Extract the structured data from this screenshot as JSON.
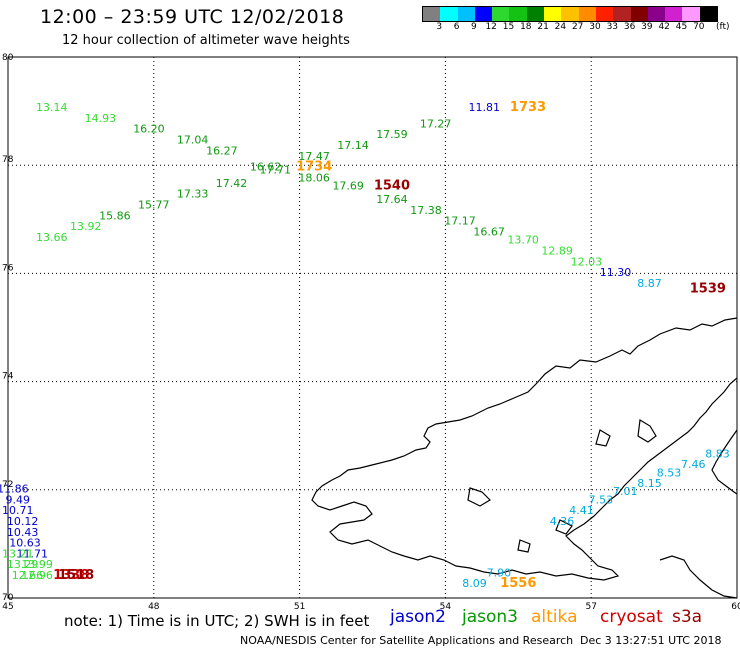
{
  "header": {
    "title": "12:00 – 23:59 UTC 12/02/2018",
    "subtitle": "12 hour collection of altimeter wave heights"
  },
  "colorbar": {
    "colors": [
      "#808080",
      "#00ffff",
      "#00bfff",
      "#0000ff",
      "#2fd82f",
      "#13c213",
      "#008000",
      "#ffff00",
      "#ffc000",
      "#ff8c00",
      "#ff2000",
      "#b22222",
      "#800000",
      "#8b008b",
      "#d020d0",
      "#ff99ff",
      "#000000"
    ],
    "ticks": [
      "3",
      "6",
      "9",
      "12",
      "15",
      "18",
      "21",
      "24",
      "27",
      "30",
      "33",
      "36",
      "39",
      "42",
      "45",
      "70"
    ],
    "unit": "(ft)"
  },
  "map": {
    "lon_range": [
      45,
      60
    ],
    "lat_range": [
      70,
      80
    ],
    "lon_ticks": [
      "45",
      "48",
      "51",
      "54",
      "57",
      "60"
    ],
    "lat_ticks": [
      "70",
      "72",
      "74",
      "76",
      "78",
      "80"
    ],
    "grid": "dotted"
  },
  "satellites": [
    {
      "name": "jason2",
      "color": "#0000cc"
    },
    {
      "name": "jason3",
      "color": "#009900"
    },
    {
      "name": "altika",
      "color": "#ff9900"
    },
    {
      "name": "cryosat",
      "color": "#cc0000"
    },
    {
      "name": "s3a",
      "color": "#990000"
    }
  ],
  "observations": [
    {
      "text": "13.14",
      "lon": 45.9,
      "lat": 79.0,
      "color": "#33dd33"
    },
    {
      "text": "14.93",
      "lon": 46.9,
      "lat": 78.8,
      "color": "#33dd33"
    },
    {
      "text": "16.20",
      "lon": 47.9,
      "lat": 78.6,
      "color": "#119911"
    },
    {
      "text": "17.04",
      "lon": 48.8,
      "lat": 78.4,
      "color": "#119911"
    },
    {
      "text": "16.27",
      "lon": 49.4,
      "lat": 78.2,
      "color": "#119911"
    },
    {
      "text": "17.42",
      "lon": 49.6,
      "lat": 77.6,
      "color": "#119911"
    },
    {
      "text": "17.33",
      "lon": 48.8,
      "lat": 77.4,
      "color": "#119911"
    },
    {
      "text": "15.77",
      "lon": 48.0,
      "lat": 77.2,
      "color": "#119911"
    },
    {
      "text": "15.86",
      "lon": 47.2,
      "lat": 77.0,
      "color": "#119911"
    },
    {
      "text": "13.92",
      "lon": 46.6,
      "lat": 76.8,
      "color": "#33dd33"
    },
    {
      "text": "13.66",
      "lon": 45.9,
      "lat": 76.6,
      "color": "#33dd33"
    },
    {
      "text": "16.62",
      "lon": 50.3,
      "lat": 77.9,
      "color": "#119911"
    },
    {
      "text": "17.71",
      "lon": 50.5,
      "lat": 77.85,
      "color": "#119911"
    },
    {
      "text": "17.47",
      "lon": 51.3,
      "lat": 78.1,
      "color": "#119911"
    },
    {
      "text": "1734",
      "lon": 51.3,
      "lat": 77.9,
      "color": "#ff9900",
      "big": true
    },
    {
      "text": "18.06",
      "lon": 51.3,
      "lat": 77.7,
      "color": "#119911"
    },
    {
      "text": "17.14",
      "lon": 52.1,
      "lat": 78.3,
      "color": "#119911"
    },
    {
      "text": "17.59",
      "lon": 52.9,
      "lat": 78.5,
      "color": "#119911"
    },
    {
      "text": "17.27",
      "lon": 53.8,
      "lat": 78.7,
      "color": "#119911"
    },
    {
      "text": "11.81",
      "lon": 54.8,
      "lat": 79.0,
      "color": "#0000cc"
    },
    {
      "text": "1733",
      "lon": 55.7,
      "lat": 79.0,
      "color": "#ff9900",
      "big": true
    },
    {
      "text": "17.69",
      "lon": 52.0,
      "lat": 77.55,
      "color": "#119911"
    },
    {
      "text": "1540",
      "lon": 52.9,
      "lat": 77.55,
      "color": "#990000",
      "big": true
    },
    {
      "text": "17.64",
      "lon": 52.9,
      "lat": 77.3,
      "color": "#119911"
    },
    {
      "text": "17.38",
      "lon": 53.6,
      "lat": 77.1,
      "color": "#119911"
    },
    {
      "text": "17.17",
      "lon": 54.3,
      "lat": 76.9,
      "color": "#119911"
    },
    {
      "text": "16.67",
      "lon": 54.9,
      "lat": 76.7,
      "color": "#119911"
    },
    {
      "text": "13.70",
      "lon": 55.6,
      "lat": 76.55,
      "color": "#33dd33"
    },
    {
      "text": "12.89",
      "lon": 56.3,
      "lat": 76.35,
      "color": "#33dd33"
    },
    {
      "text": "12.03",
      "lon": 56.9,
      "lat": 76.15,
      "color": "#33dd33"
    },
    {
      "text": "11.30",
      "lon": 57.5,
      "lat": 75.95,
      "color": "#0000cc"
    },
    {
      "text": "8.87",
      "lon": 58.2,
      "lat": 75.75,
      "color": "#00aadd"
    },
    {
      "text": "1539",
      "lon": 59.4,
      "lat": 75.65,
      "color": "#990000",
      "big": true
    },
    {
      "text": "8.83",
      "lon": 59.6,
      "lat": 72.6,
      "color": "#00aadd"
    },
    {
      "text": "7.46",
      "lon": 59.1,
      "lat": 72.4,
      "color": "#00aadd"
    },
    {
      "text": "8.53",
      "lon": 58.6,
      "lat": 72.25,
      "color": "#00aadd"
    },
    {
      "text": "8.15",
      "lon": 58.2,
      "lat": 72.05,
      "color": "#00aadd"
    },
    {
      "text": "7.01",
      "lon": 57.7,
      "lat": 71.9,
      "color": "#00aadd"
    },
    {
      "text": "7.53",
      "lon": 57.2,
      "lat": 71.75,
      "color": "#00aadd"
    },
    {
      "text": "4.41",
      "lon": 56.8,
      "lat": 71.55,
      "color": "#00aadd"
    },
    {
      "text": "4.36",
      "lon": 56.4,
      "lat": 71.35,
      "color": "#00aadd"
    },
    {
      "text": "7.90",
      "lon": 55.1,
      "lat": 70.4,
      "color": "#00aadd"
    },
    {
      "text": "8.09",
      "lon": 54.6,
      "lat": 70.2,
      "color": "#00aadd"
    },
    {
      "text": "1556",
      "lon": 55.5,
      "lat": 70.2,
      "color": "#ff9900",
      "big": true
    },
    {
      "text": "11.86",
      "lon": 45.1,
      "lat": 71.95,
      "color": "#0000cc"
    },
    {
      "text": "9.49",
      "lon": 45.2,
      "lat": 71.75,
      "color": "#0000cc"
    },
    {
      "text": "10.71",
      "lon": 45.2,
      "lat": 71.55,
      "color": "#0000cc"
    },
    {
      "text": "10.12",
      "lon": 45.3,
      "lat": 71.35,
      "color": "#0000cc"
    },
    {
      "text": "10.43",
      "lon": 45.3,
      "lat": 71.15,
      "color": "#0000cc"
    },
    {
      "text": "10.63",
      "lon": 45.35,
      "lat": 70.95,
      "color": "#0000cc"
    },
    {
      "text": "11.71",
      "lon": 45.5,
      "lat": 70.75,
      "color": "#0000cc"
    },
    {
      "text": "13.21",
      "lon": 45.2,
      "lat": 70.75,
      "color": "#33dd33"
    },
    {
      "text": "13.29",
      "lon": 45.3,
      "lat": 70.55,
      "color": "#33dd33"
    },
    {
      "text": "13.99",
      "lon": 45.6,
      "lat": 70.55,
      "color": "#33dd33"
    },
    {
      "text": "12.66",
      "lon": 45.4,
      "lat": 70.35,
      "color": "#33dd33"
    },
    {
      "text": "12.96",
      "lon": 45.6,
      "lat": 70.35,
      "color": "#33dd33"
    },
    {
      "text": "1338",
      "lon": 46.3,
      "lat": 70.35,
      "color": "#cc0000",
      "big": true
    },
    {
      "text": "1518",
      "lon": 46.4,
      "lat": 70.35,
      "color": "#990000",
      "big": true
    }
  ],
  "note": "note: 1) Time is in UTC; 2) SWH is in feet",
  "footer": {
    "credit": "NOAA/NESDIS Center for Satellite Applications and Research",
    "timestamp": "Dec  3 13:27:51 UTC 2018"
  }
}
